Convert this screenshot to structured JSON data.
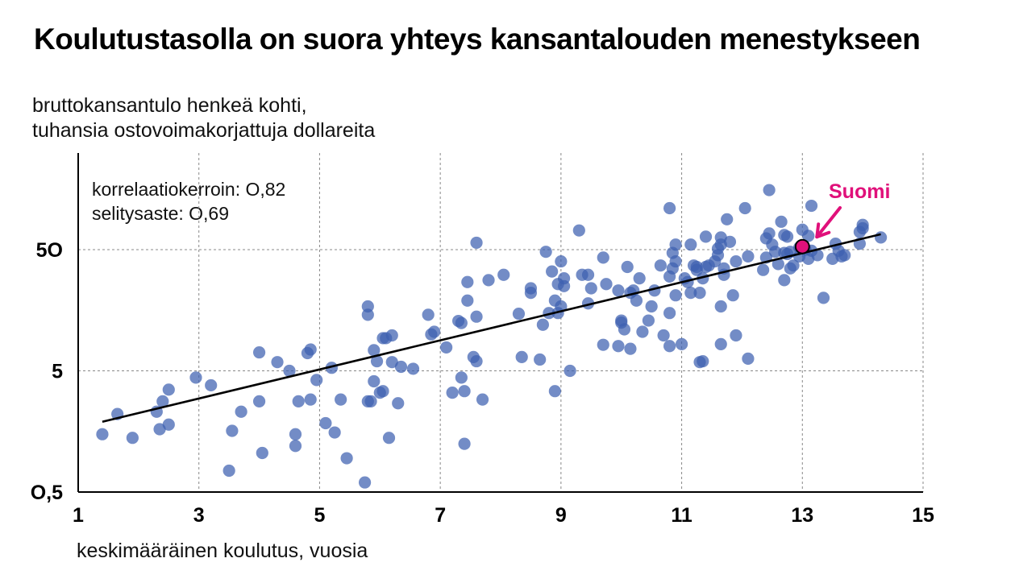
{
  "chart_data": {
    "type": "scatter",
    "title": "Koulutustasolla on suora yhteys kansantalouden menestykseen",
    "ylabel_lines": [
      "bruttokansantulo henkeä kohti,",
      "tuhansia ostovoimakorjattuja dollareita"
    ],
    "xlabel": "keskimääräinen koulutus, vuosia",
    "annotation_lines": [
      "korrelaatiokerroin: O,82",
      "selitysaste: O,69"
    ],
    "x_scale": "linear",
    "y_scale": "log",
    "xlim": [
      1,
      15
    ],
    "ylim": [
      0.5,
      200
    ],
    "x_ticks": [
      1,
      3,
      5,
      7,
      9,
      11,
      13,
      15
    ],
    "x_tick_labels": [
      "1",
      "3",
      "5",
      "7",
      "9",
      "11",
      "13",
      "15"
    ],
    "y_ticks": [
      0.5,
      5,
      50
    ],
    "y_tick_labels": [
      "O,5",
      "5",
      "5O"
    ],
    "grid": true,
    "point_color": "#3d5fb0",
    "trend_color": "#000000",
    "highlight_color": "#e0107a",
    "trend_line": {
      "x": [
        1.4,
        14.3
      ],
      "y": [
        1.9,
        67
      ]
    },
    "highlight": {
      "label": "Suomi",
      "x": 13.0,
      "y": 53
    },
    "points": [
      [
        1.4,
        1.5
      ],
      [
        1.65,
        2.2
      ],
      [
        1.9,
        1.4
      ],
      [
        2.3,
        2.3
      ],
      [
        2.35,
        1.65
      ],
      [
        2.4,
        2.8
      ],
      [
        2.5,
        3.5
      ],
      [
        2.5,
        1.8
      ],
      [
        2.95,
        4.4
      ],
      [
        3.2,
        3.8
      ],
      [
        3.5,
        0.75
      ],
      [
        3.55,
        1.6
      ],
      [
        3.7,
        2.3
      ],
      [
        4.0,
        7.1
      ],
      [
        4.0,
        2.8
      ],
      [
        4.05,
        1.05
      ],
      [
        4.3,
        5.9
      ],
      [
        4.5,
        5.0
      ],
      [
        4.6,
        1.5
      ],
      [
        4.6,
        1.2
      ],
      [
        4.65,
        2.8
      ],
      [
        4.8,
        7.0
      ],
      [
        4.85,
        7.5
      ],
      [
        4.85,
        2.9
      ],
      [
        4.95,
        4.2
      ],
      [
        5.1,
        1.85
      ],
      [
        5.2,
        5.3
      ],
      [
        5.25,
        1.55
      ],
      [
        5.35,
        2.9
      ],
      [
        5.45,
        0.95
      ],
      [
        5.75,
        0.6
      ],
      [
        5.8,
        17
      ],
      [
        5.8,
        14.5
      ],
      [
        5.8,
        2.8
      ],
      [
        5.85,
        2.8
      ],
      [
        5.9,
        4.1
      ],
      [
        5.9,
        7.4
      ],
      [
        5.95,
        6.0
      ],
      [
        6.0,
        3.3
      ],
      [
        6.05,
        3.4
      ],
      [
        6.05,
        9.3
      ],
      [
        6.1,
        9.3
      ],
      [
        6.15,
        1.4
      ],
      [
        6.2,
        9.8
      ],
      [
        6.2,
        5.9
      ],
      [
        6.3,
        2.7
      ],
      [
        6.35,
        5.4
      ],
      [
        6.55,
        5.2
      ],
      [
        6.8,
        14.5
      ],
      [
        6.85,
        10
      ],
      [
        6.9,
        10.5
      ],
      [
        7.1,
        7.8
      ],
      [
        7.2,
        3.3
      ],
      [
        7.3,
        12.9
      ],
      [
        7.35,
        12.4
      ],
      [
        7.35,
        4.4
      ],
      [
        7.4,
        1.25
      ],
      [
        7.4,
        3.4
      ],
      [
        7.45,
        19
      ],
      [
        7.45,
        27
      ],
      [
        7.55,
        6.5
      ],
      [
        7.6,
        6.0
      ],
      [
        7.6,
        14.0
      ],
      [
        7.7,
        2.9
      ],
      [
        7.6,
        57
      ],
      [
        7.8,
        28
      ],
      [
        8.05,
        31
      ],
      [
        8.3,
        14.8
      ],
      [
        8.35,
        6.5
      ],
      [
        8.5,
        22
      ],
      [
        8.5,
        24
      ],
      [
        8.65,
        6.2
      ],
      [
        8.7,
        12
      ],
      [
        8.75,
        48
      ],
      [
        8.8,
        15
      ],
      [
        8.85,
        33
      ],
      [
        8.9,
        3.4
      ],
      [
        8.9,
        19
      ],
      [
        8.95,
        26
      ],
      [
        8.95,
        15
      ],
      [
        9.0,
        17
      ],
      [
        9.0,
        40
      ],
      [
        9.05,
        25
      ],
      [
        9.05,
        29
      ],
      [
        9.15,
        5.0
      ],
      [
        9.3,
        72
      ],
      [
        9.35,
        31
      ],
      [
        9.45,
        31
      ],
      [
        9.45,
        18
      ],
      [
        9.5,
        24
      ],
      [
        9.7,
        8.2
      ],
      [
        9.7,
        43
      ],
      [
        9.75,
        26
      ],
      [
        9.95,
        23
      ],
      [
        9.95,
        8.0
      ],
      [
        10.0,
        12.5
      ],
      [
        10.0,
        13
      ],
      [
        10.05,
        11
      ],
      [
        10.1,
        36
      ],
      [
        10.15,
        7.6
      ],
      [
        10.15,
        22
      ],
      [
        10.2,
        23
      ],
      [
        10.25,
        19
      ],
      [
        10.3,
        29
      ],
      [
        10.35,
        10.5
      ],
      [
        10.45,
        13
      ],
      [
        10.5,
        17
      ],
      [
        10.55,
        23
      ],
      [
        10.65,
        37
      ],
      [
        10.7,
        9.8
      ],
      [
        10.8,
        30
      ],
      [
        10.8,
        15
      ],
      [
        10.8,
        8.0
      ],
      [
        10.85,
        35
      ],
      [
        10.85,
        47
      ],
      [
        10.8,
        110
      ],
      [
        10.9,
        55
      ],
      [
        10.9,
        40
      ],
      [
        10.9,
        21
      ],
      [
        11.0,
        8.3
      ],
      [
        11.05,
        29
      ],
      [
        11.1,
        27
      ],
      [
        11.15,
        55
      ],
      [
        11.15,
        22
      ],
      [
        11.2,
        37
      ],
      [
        11.25,
        34
      ],
      [
        11.25,
        36
      ],
      [
        11.3,
        5.9
      ],
      [
        11.3,
        22
      ],
      [
        11.35,
        29
      ],
      [
        11.35,
        6.0
      ],
      [
        11.4,
        36
      ],
      [
        11.4,
        64
      ],
      [
        11.45,
        37
      ],
      [
        11.55,
        40
      ],
      [
        11.6,
        45
      ],
      [
        11.6,
        51
      ],
      [
        11.65,
        55
      ],
      [
        11.65,
        63
      ],
      [
        11.65,
        17
      ],
      [
        11.65,
        8.3
      ],
      [
        11.7,
        35
      ],
      [
        11.7,
        31
      ],
      [
        11.75,
        89
      ],
      [
        11.8,
        58
      ],
      [
        11.85,
        21
      ],
      [
        11.9,
        40
      ],
      [
        11.9,
        9.8
      ],
      [
        12.05,
        110
      ],
      [
        12.1,
        44
      ],
      [
        12.1,
        6.3
      ],
      [
        12.35,
        34
      ],
      [
        12.4,
        62
      ],
      [
        12.4,
        43
      ],
      [
        12.45,
        68
      ],
      [
        12.45,
        155
      ],
      [
        12.5,
        55
      ],
      [
        12.55,
        48
      ],
      [
        12.6,
        38
      ],
      [
        12.65,
        85
      ],
      [
        12.7,
        47
      ],
      [
        12.7,
        66
      ],
      [
        12.7,
        28
      ],
      [
        12.75,
        64
      ],
      [
        12.75,
        46
      ],
      [
        12.8,
        35
      ],
      [
        12.8,
        48
      ],
      [
        12.85,
        37
      ],
      [
        12.95,
        52
      ],
      [
        12.95,
        44
      ],
      [
        13.0,
        73
      ],
      [
        13.05,
        50
      ],
      [
        13.1,
        65
      ],
      [
        13.1,
        42
      ],
      [
        13.15,
        49
      ],
      [
        13.15,
        115
      ],
      [
        13.25,
        45
      ],
      [
        13.35,
        20
      ],
      [
        13.5,
        42
      ],
      [
        13.55,
        56
      ],
      [
        13.6,
        49
      ],
      [
        13.65,
        44
      ],
      [
        13.7,
        45
      ],
      [
        13.95,
        56
      ],
      [
        13.95,
        70
      ],
      [
        14.0,
        75
      ],
      [
        14.0,
        80
      ],
      [
        14.3,
        63
      ]
    ]
  }
}
